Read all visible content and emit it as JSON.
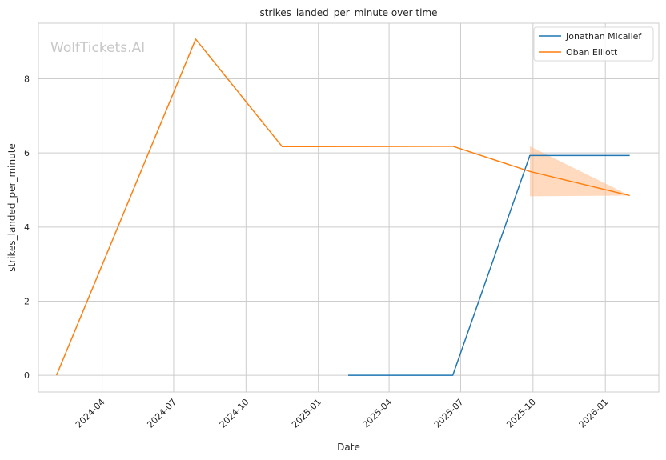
{
  "chart_data": {
    "type": "line",
    "title": "strikes_landed_per_minute over time",
    "xlabel": "Date",
    "ylabel": "strikes_landed_per_minute",
    "watermark": "WolfTickets.AI",
    "x_ticks": [
      "2024-04",
      "2024-07",
      "2024-10",
      "2025-01",
      "2025-04",
      "2025-07",
      "2025-10",
      "2026-01"
    ],
    "y_ticks": [
      "0",
      "2",
      "4",
      "6",
      "8"
    ],
    "xlim": [
      "2024-01-11",
      "2026-03-10"
    ],
    "ylim": [
      -0.45,
      9.5
    ],
    "grid": true,
    "legend_position": "top-right",
    "series": [
      {
        "name": "Jonathan Micallef",
        "color": "#1f77b4",
        "points": [
          {
            "x": "2025-02-08",
            "y": 0.0
          },
          {
            "x": "2025-06-21",
            "y": 0.0
          },
          {
            "x": "2025-09-27",
            "y": 5.93
          },
          {
            "x": "2026-02-01",
            "y": 5.93
          }
        ]
      },
      {
        "name": "Oban Elliott",
        "color": "#ff7f0e",
        "points": [
          {
            "x": "2024-02-03",
            "y": 0.0
          },
          {
            "x": "2024-07-29",
            "y": 9.07
          },
          {
            "x": "2024-11-16",
            "y": 6.17
          },
          {
            "x": "2025-06-21",
            "y": 6.18
          },
          {
            "x": "2025-09-27",
            "y": 5.5
          },
          {
            "x": "2026-02-01",
            "y": 4.85
          }
        ],
        "band": {
          "color": "#ffbb88",
          "x": [
            "2025-09-27",
            "2026-02-01"
          ],
          "upper": [
            6.18,
            4.85
          ],
          "lower": [
            4.83,
            4.85
          ]
        }
      }
    ]
  }
}
